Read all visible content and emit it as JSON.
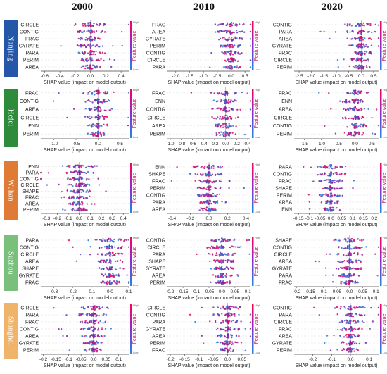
{
  "colors": {
    "low": "#1e88e5",
    "high": "#ff0052",
    "city_colors": [
      "#2557a8",
      "#2e8b3a",
      "#e07b36",
      "#79c07a",
      "#efb36a"
    ]
  },
  "legend": {
    "high_label": "High",
    "low_label": "Low",
    "feature_value_label": "Feature value"
  },
  "chart_data": {
    "type": "shap-beeswarm-grid",
    "column_titles": [
      "2000",
      "2010",
      "2020"
    ],
    "row_labels": [
      "Nanjing",
      "Hefei",
      "Wuhan",
      "Suzhou",
      "Shanghai"
    ],
    "xlabel": "SHAP value (impact on model output)",
    "panels": [
      [
        {
          "features": [
            "CIRCLE",
            "CONTIG",
            "FRAC",
            "GYRATE",
            "PARA",
            "PERIM",
            "AREA"
          ],
          "xticks": [
            -0.6,
            -0.4,
            -0.2,
            0.0,
            0.2,
            0.4
          ],
          "xlim": [
            -0.65,
            0.5
          ]
        },
        {
          "features": [
            "FRAC",
            "AREA",
            "GYRATE",
            "PERIM",
            "CONTIG",
            "CIRCLE",
            "PARA"
          ],
          "xticks": [
            -2.0,
            -1.5,
            -1.0,
            -0.5,
            0.0,
            0.5
          ],
          "xlim": [
            -2.3,
            0.7
          ]
        },
        {
          "features": [
            "CONTIG",
            "PARA",
            "AREA",
            "GYRATE",
            "FRAC",
            "CIRCLE",
            "PERIM"
          ],
          "xticks": [
            -2.5,
            -2.0,
            -1.5,
            -1.0,
            -0.5,
            0.0,
            0.5
          ],
          "xlim": [
            -2.7,
            0.7
          ]
        }
      ],
      [
        {
          "features": [
            "FRAC",
            "CONTIG",
            "AREA",
            "CIRCLE",
            "ENN",
            "PERIM"
          ],
          "xticks": [
            -1.0,
            -0.5,
            0.0,
            0.5
          ],
          "xlim": [
            -1.3,
            0.7
          ]
        },
        {
          "features": [
            "FRAC",
            "ENN",
            "CONTIG",
            "CIRCLE",
            "AREA",
            "PERIM"
          ],
          "xticks": [
            -1.0,
            -0.8,
            -0.6,
            -0.4,
            -0.2,
            0.0,
            0.2,
            0.4
          ],
          "xlim": [
            -1.05,
            0.45
          ]
        },
        {
          "features": [
            "FRAC",
            "ENN",
            "AREA",
            "CIRCLE",
            "CONTIG",
            "PERIM"
          ],
          "xticks": [
            -1.5,
            -1.0,
            -0.5,
            0.0,
            0.5
          ],
          "xlim": [
            -1.8,
            0.7
          ]
        }
      ],
      [
        {
          "features": [
            "ENN",
            "PARA",
            "CONTIG",
            "CIRCLE",
            "SHAPE",
            "FRAC",
            "AREA",
            "PERIM"
          ],
          "xticks": [
            -0.3,
            -0.2,
            -0.1,
            0.0,
            0.1,
            0.2,
            0.3,
            0.4
          ],
          "xlim": [
            -0.35,
            0.45
          ]
        },
        {
          "features": [
            "ENN",
            "SHAPE",
            "FRAC",
            "PERIM",
            "CONTIG",
            "PARA",
            "AREA"
          ],
          "xticks": [
            -0.4,
            -0.2,
            0.0,
            0.2,
            0.4
          ],
          "xlim": [
            -0.45,
            0.45
          ]
        },
        {
          "features": [
            "PARA",
            "CONTIG",
            "FRAC",
            "SHAPE",
            "PERIM",
            "AREA",
            "ENN"
          ],
          "xticks": [
            -0.15,
            -0.1,
            -0.05,
            0.0,
            0.05,
            0.1,
            0.15,
            0.2
          ],
          "xlim": [
            -0.17,
            0.22
          ]
        }
      ],
      [
        {
          "features": [
            "PARA",
            "CONTIG",
            "CIRCLE",
            "AREA",
            "SHAPE",
            "GYRATE",
            "FRAC"
          ],
          "xticks": [
            -0.3,
            -0.2,
            -0.1,
            0.0,
            0.1
          ],
          "xlim": [
            -0.37,
            0.1
          ]
        },
        {
          "features": [
            "CONTIG",
            "CIRCLE",
            "PARA",
            "SHAPE",
            "GYRATE",
            "AREA",
            "PERIM"
          ],
          "xticks": [
            -0.2,
            -0.15,
            -0.1,
            -0.05,
            0.0,
            0.05,
            0.1
          ],
          "xlim": [
            -0.21,
            0.11
          ]
        },
        {
          "features": [
            "SHAPE",
            "CONTIG",
            "CIRCLE",
            "AREA",
            "GYRATE",
            "PARA",
            "FRAC"
          ],
          "xticks": [
            -0.2,
            -0.15,
            -0.1,
            -0.05,
            0.0,
            0.05,
            0.1
          ],
          "xlim": [
            -0.21,
            0.11
          ]
        }
      ],
      [
        {
          "features": [
            "CIRCLE",
            "PARA",
            "FRAC",
            "CONTIG",
            "AREA",
            "GYRATE",
            "PERIM"
          ],
          "xticks": [
            -0.2,
            -0.15,
            -0.1,
            -0.05,
            0.0,
            0.05,
            0.1
          ],
          "xlim": [
            -0.21,
            0.14
          ]
        },
        {
          "features": [
            "CIRCLE",
            "CONTIG",
            "PARA",
            "GYRATE",
            "AREA",
            "PERIM",
            "FRAC"
          ],
          "xticks": [
            -0.2,
            -0.15,
            -0.1,
            -0.05,
            0.0,
            0.05
          ],
          "xlim": [
            -0.21,
            0.08
          ]
        },
        {
          "features": [
            "CONTIG",
            "PARA",
            "CIRCLE",
            "FRAC",
            "AREA",
            "GYRATE",
            "PERIM"
          ],
          "xticks": [
            -0.2,
            -0.1,
            0.0,
            0.1
          ],
          "xlim": [
            -0.3,
            0.15
          ]
        }
      ]
    ]
  }
}
